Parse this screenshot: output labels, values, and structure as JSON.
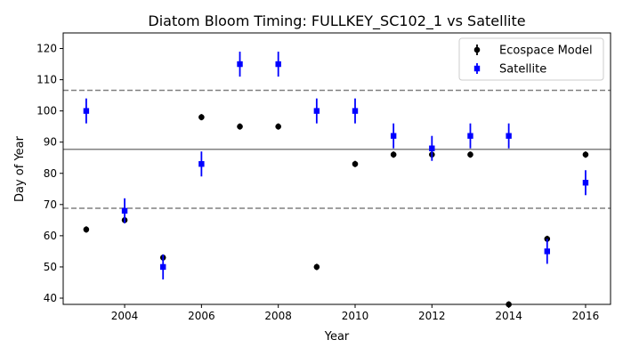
{
  "chart_data": {
    "type": "scatter",
    "title": "Diatom Bloom Timing: FULLKEY_SC102_1 vs Satellite",
    "xlabel": "Year",
    "ylabel": "Day of Year",
    "xlim": [
      2002.4,
      2016.65
    ],
    "ylim": [
      38,
      125
    ],
    "xticks": [
      2004,
      2006,
      2008,
      2010,
      2012,
      2014,
      2016
    ],
    "yticks": [
      40,
      50,
      60,
      70,
      80,
      90,
      100,
      110,
      120
    ],
    "grid": false,
    "legend_position": "top-right",
    "reference_lines": [
      {
        "y": 87.7,
        "style": "solid",
        "color": "#808080"
      },
      {
        "y": 106.6,
        "style": "dashed",
        "color": "#808080"
      },
      {
        "y": 68.8,
        "style": "dashed",
        "color": "#808080"
      }
    ],
    "series": [
      {
        "name": "Ecospace Model",
        "marker": "circle",
        "color": "#000000",
        "x": [
          2003,
          2004,
          2005,
          2006,
          2007,
          2008,
          2009,
          2010,
          2011,
          2012,
          2013,
          2014,
          2015,
          2016
        ],
        "y": [
          62,
          65,
          53,
          98,
          95,
          95,
          50,
          83,
          86,
          86,
          86,
          38,
          59,
          86
        ],
        "err": [
          1,
          1,
          1,
          1,
          1,
          1,
          1,
          1,
          1,
          1,
          1,
          1,
          1,
          1
        ]
      },
      {
        "name": "Satellite",
        "marker": "square",
        "color": "#0000ff",
        "x": [
          2003,
          2004,
          2005,
          2006,
          2007,
          2008,
          2009,
          2010,
          2011,
          2012,
          2013,
          2014,
          2015,
          2016
        ],
        "y": [
          100,
          68,
          50,
          83,
          115,
          115,
          100,
          100,
          92,
          88,
          92,
          92,
          55,
          77
        ],
        "err": [
          4,
          4,
          4,
          4,
          4,
          4,
          4,
          4,
          4,
          4,
          4,
          4,
          4,
          4
        ]
      }
    ]
  }
}
